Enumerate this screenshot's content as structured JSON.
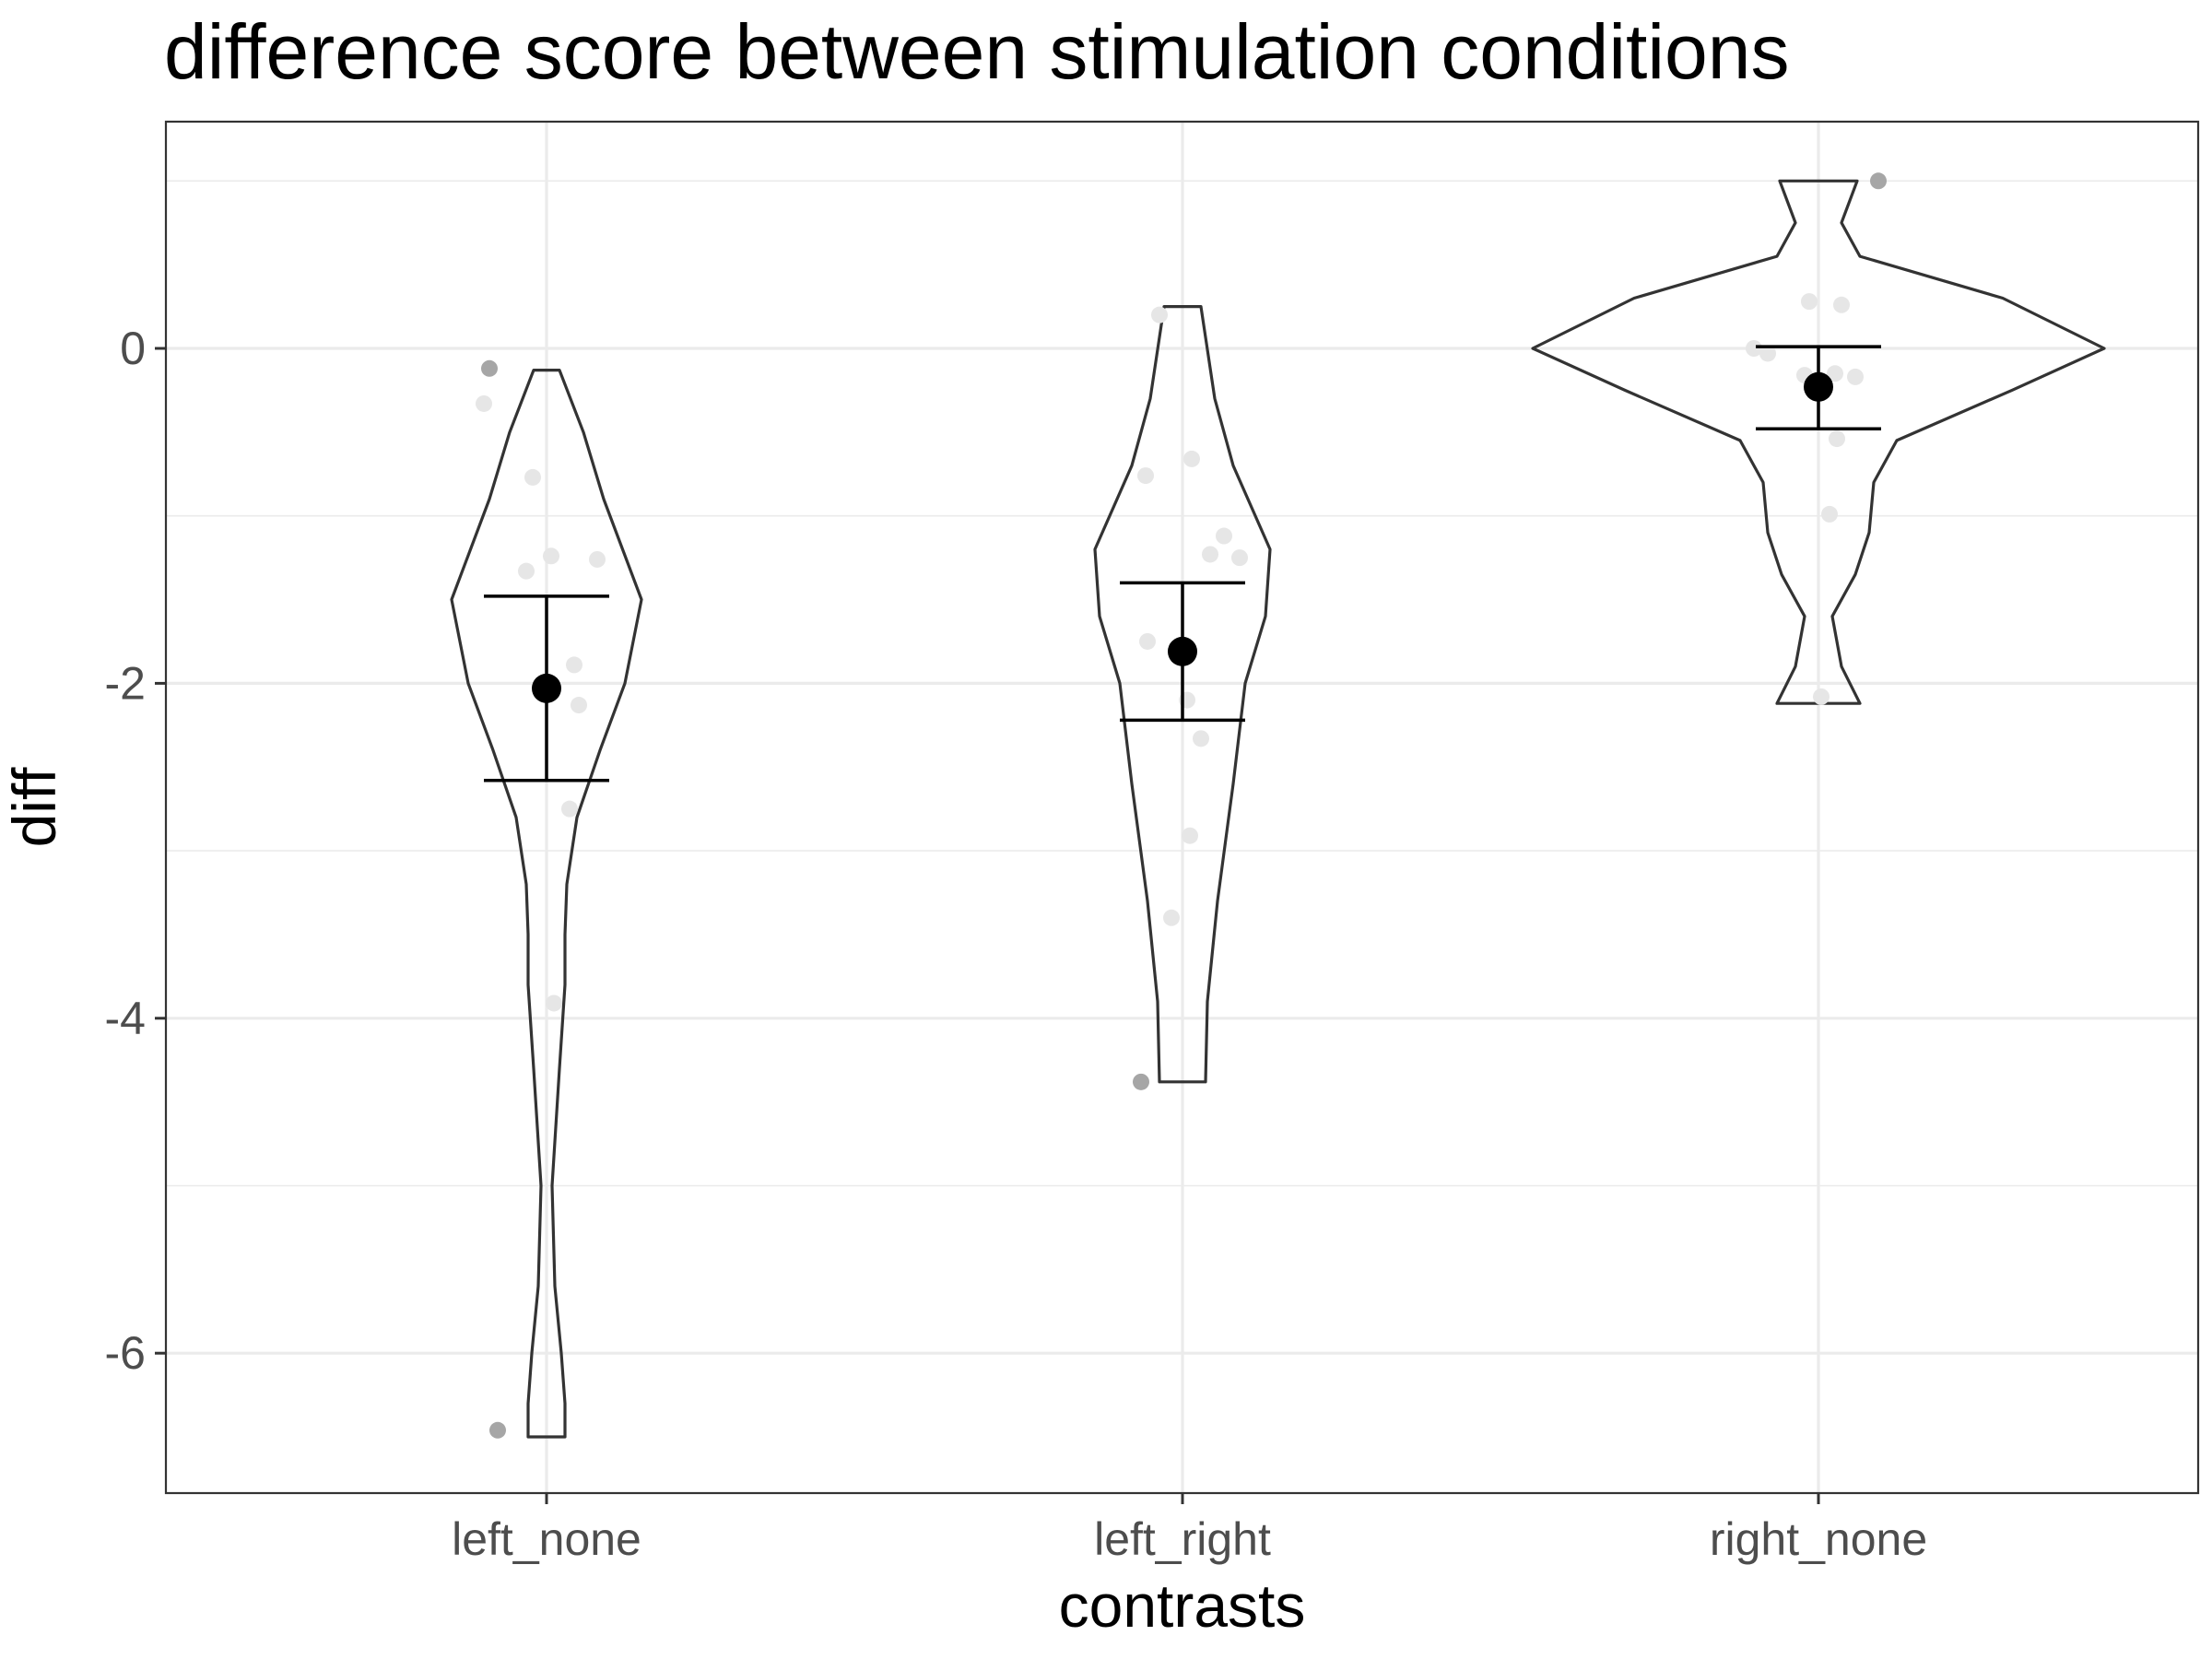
{
  "chart_data": {
    "type": "violin",
    "title": "difference score between stimulation conditions",
    "xlabel": "contrasts",
    "ylabel": "diff",
    "categories": [
      "left_none",
      "left_right",
      "right_none"
    ],
    "ylim": [
      -6.85,
      1.35
    ],
    "yticks": [
      "0",
      "-2",
      "-4",
      "-6"
    ],
    "grid": true,
    "colors": {
      "violin_outline": "#333333",
      "point_faint": "#e6e6e6",
      "point_outlier": "#a6a6a6",
      "mean": "#000000",
      "grid": "#ebebeb",
      "panel_border": "#333333"
    },
    "series": [
      {
        "category": "left_none",
        "mean": -2.03,
        "error_bar": [
          -2.58,
          -1.48
        ],
        "violin_range": [
          -6.5,
          -0.13
        ],
        "points": [
          {
            "y": -0.12,
            "outlier": true
          },
          {
            "y": -0.33
          },
          {
            "y": -0.77
          },
          {
            "y": -1.24
          },
          {
            "y": -1.26
          },
          {
            "y": -1.33
          },
          {
            "y": -1.89
          },
          {
            "y": -2.13
          },
          {
            "y": -2.75
          },
          {
            "y": -3.91
          },
          {
            "y": -6.46,
            "outlier": true
          }
        ]
      },
      {
        "category": "left_right",
        "mean": -1.81,
        "error_bar": [
          -2.22,
          -1.4
        ],
        "violin_range": [
          -4.38,
          0.25
        ],
        "points": [
          {
            "y": 0.2
          },
          {
            "y": -0.66
          },
          {
            "y": -0.76
          },
          {
            "y": -1.12
          },
          {
            "y": -1.23
          },
          {
            "y": -1.25
          },
          {
            "y": -1.75
          },
          {
            "y": -2.1
          },
          {
            "y": -2.33
          },
          {
            "y": -2.91
          },
          {
            "y": -3.4
          },
          {
            "y": -4.38,
            "outlier": true
          }
        ]
      },
      {
        "category": "right_none",
        "mean": -0.23,
        "error_bar": [
          -0.48,
          0.01
        ],
        "violin_range": [
          -2.12,
          1.0
        ],
        "points": [
          {
            "y": 1.0,
            "outlier": true
          },
          {
            "y": 0.28
          },
          {
            "y": 0.26
          },
          {
            "y": 0.0
          },
          {
            "y": -0.03
          },
          {
            "y": -0.15
          },
          {
            "y": -0.16
          },
          {
            "y": -0.17
          },
          {
            "y": -0.54
          },
          {
            "y": -0.99
          },
          {
            "y": -2.08
          }
        ]
      }
    ]
  }
}
